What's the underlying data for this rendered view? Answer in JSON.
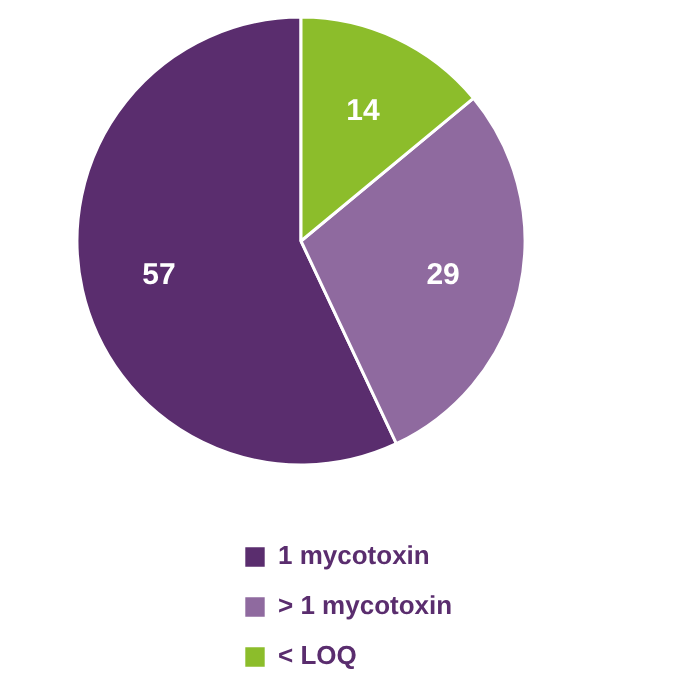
{
  "chart_data": {
    "type": "pie",
    "categories": [
      "1 mycotoxin",
      "> 1 mycotoxin",
      "< LOQ"
    ],
    "values": [
      57,
      29,
      14
    ],
    "colors": [
      "#5a2d6e",
      "#8f6a9f",
      "#8cbd2b"
    ],
    "data_labels": true,
    "legend": "bottom"
  }
}
